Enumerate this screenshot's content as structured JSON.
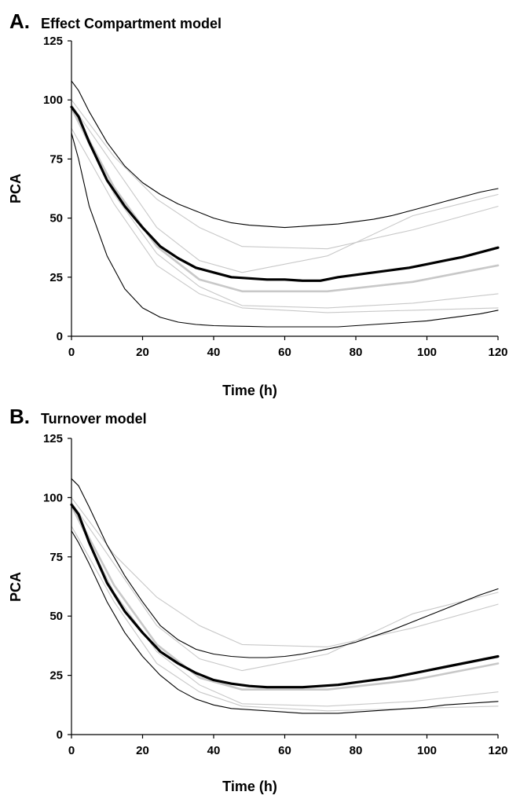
{
  "chart_data": [
    {
      "type": "line",
      "panel_letter": "A.",
      "title": "Effect Compartment model",
      "xlabel": "Time (h)",
      "ylabel": "PCA",
      "xlim": [
        0,
        120
      ],
      "ylim": [
        0,
        125
      ],
      "xticks": [
        "0",
        "20",
        "40",
        "60",
        "80",
        "100",
        "120"
      ],
      "yticks": [
        "0",
        "25",
        "50",
        "75",
        "100",
        "125"
      ],
      "grid": false,
      "legend": "none",
      "series": [
        {
          "style": "gray-thin",
          "x": [
            0,
            6,
            12,
            24,
            36,
            48,
            72,
            96,
            120
          ],
          "y": [
            100,
            88,
            76,
            58,
            46,
            38,
            37,
            45,
            55
          ]
        },
        {
          "style": "gray-thin",
          "x": [
            0,
            6,
            12,
            24,
            36,
            48,
            72,
            96,
            120
          ],
          "y": [
            98,
            85,
            72,
            46,
            32,
            27,
            34,
            51,
            60
          ]
        },
        {
          "style": "gray-thick",
          "x": [
            0,
            6,
            12,
            24,
            36,
            48,
            72,
            96,
            120
          ],
          "y": [
            97,
            80,
            63,
            38,
            24,
            19,
            19,
            23,
            30
          ]
        },
        {
          "style": "gray-thin",
          "x": [
            0,
            6,
            12,
            24,
            36,
            48,
            72,
            96,
            120
          ],
          "y": [
            96,
            78,
            60,
            35,
            21,
            13,
            12,
            14,
            18
          ]
        },
        {
          "style": "gray-thin",
          "x": [
            0,
            6,
            12,
            24,
            36,
            48,
            72,
            96,
            120
          ],
          "y": [
            88,
            72,
            56,
            30,
            18,
            12,
            10,
            11,
            12
          ]
        },
        {
          "style": "black-thin",
          "x": [
            0,
            2,
            5,
            10,
            15,
            20,
            25,
            30,
            35,
            40,
            45,
            50,
            55,
            60,
            65,
            70,
            75,
            80,
            85,
            90,
            95,
            100,
            105,
            110,
            115,
            120
          ],
          "y": [
            108,
            104,
            95,
            82,
            72,
            65,
            60,
            56,
            53,
            50,
            48,
            47,
            46.5,
            46,
            46.5,
            47,
            47.5,
            48.5,
            49.5,
            51,
            53,
            55,
            57,
            59,
            61,
            62.5
          ]
        },
        {
          "style": "black-thick",
          "x": [
            0,
            2,
            5,
            10,
            15,
            20,
            25,
            30,
            35,
            40,
            45,
            50,
            55,
            60,
            65,
            70,
            75,
            80,
            85,
            90,
            95,
            100,
            105,
            110,
            115,
            120
          ],
          "y": [
            97,
            93,
            82,
            66,
            55,
            46,
            38,
            33,
            29,
            27,
            25,
            24.5,
            24,
            24,
            23.5,
            23.5,
            25,
            26,
            27,
            28,
            29,
            30.5,
            32,
            33.5,
            35.5,
            37.5
          ]
        },
        {
          "style": "black-thin",
          "x": [
            0,
            2,
            5,
            10,
            15,
            20,
            25,
            30,
            35,
            40,
            45,
            50,
            55,
            60,
            65,
            70,
            75,
            80,
            85,
            90,
            95,
            100,
            105,
            110,
            115,
            120
          ],
          "y": [
            86,
            75,
            55,
            34,
            20,
            12,
            8,
            6,
            5,
            4.5,
            4.3,
            4.2,
            4,
            4,
            4,
            4,
            4,
            4.5,
            5,
            5.5,
            6,
            6.5,
            7.5,
            8.5,
            9.5,
            11
          ]
        }
      ]
    },
    {
      "type": "line",
      "panel_letter": "B.",
      "title": "Turnover model",
      "xlabel": "Time (h)",
      "ylabel": "PCA",
      "xlim": [
        0,
        120
      ],
      "ylim": [
        0,
        125
      ],
      "xticks": [
        "0",
        "20",
        "40",
        "60",
        "80",
        "100",
        "120"
      ],
      "yticks": [
        "0",
        "25",
        "50",
        "75",
        "100",
        "125"
      ],
      "grid": false,
      "legend": "none",
      "series": [
        {
          "style": "gray-thin",
          "x": [
            0,
            6,
            12,
            24,
            36,
            48,
            72,
            96,
            120
          ],
          "y": [
            100,
            88,
            76,
            58,
            46,
            38,
            37,
            45,
            55
          ]
        },
        {
          "style": "gray-thin",
          "x": [
            0,
            6,
            12,
            24,
            36,
            48,
            72,
            96,
            120
          ],
          "y": [
            98,
            85,
            72,
            46,
            32,
            27,
            34,
            51,
            60
          ]
        },
        {
          "style": "gray-thick",
          "x": [
            0,
            6,
            12,
            24,
            36,
            48,
            72,
            96,
            120
          ],
          "y": [
            97,
            80,
            63,
            38,
            24,
            19,
            19,
            23,
            30
          ]
        },
        {
          "style": "gray-thin",
          "x": [
            0,
            6,
            12,
            24,
            36,
            48,
            72,
            96,
            120
          ],
          "y": [
            96,
            78,
            60,
            35,
            21,
            13,
            12,
            14,
            18
          ]
        },
        {
          "style": "gray-thin",
          "x": [
            0,
            6,
            12,
            24,
            36,
            48,
            72,
            96,
            120
          ],
          "y": [
            88,
            72,
            56,
            30,
            18,
            12,
            10,
            11,
            12
          ]
        },
        {
          "style": "black-thin",
          "x": [
            0,
            2,
            5,
            10,
            15,
            20,
            25,
            30,
            35,
            40,
            45,
            50,
            55,
            60,
            65,
            70,
            75,
            80,
            85,
            90,
            95,
            100,
            105,
            110,
            115,
            120
          ],
          "y": [
            108,
            105,
            96,
            80,
            67,
            56,
            46,
            40,
            36,
            34,
            33,
            32.5,
            32.5,
            33,
            34,
            35.5,
            37,
            39,
            41.5,
            44,
            47,
            50,
            53,
            56,
            59,
            61.5
          ]
        },
        {
          "style": "black-thick",
          "x": [
            0,
            2,
            5,
            10,
            15,
            20,
            25,
            30,
            35,
            40,
            45,
            50,
            55,
            60,
            65,
            70,
            75,
            80,
            85,
            90,
            95,
            100,
            105,
            110,
            115,
            120
          ],
          "y": [
            97,
            93,
            81,
            64,
            52,
            43,
            35,
            30,
            26,
            23,
            21.5,
            20.5,
            20,
            20,
            20,
            20.5,
            21,
            22,
            23,
            24,
            25.5,
            27,
            28.5,
            30,
            31.5,
            33
          ]
        },
        {
          "style": "black-thin",
          "x": [
            0,
            2,
            5,
            10,
            15,
            20,
            25,
            30,
            35,
            40,
            45,
            50,
            55,
            60,
            65,
            70,
            75,
            80,
            85,
            90,
            95,
            100,
            105,
            110,
            115,
            120
          ],
          "y": [
            86,
            81,
            72,
            56,
            43,
            33,
            25,
            19,
            15,
            12.5,
            11,
            10.5,
            10,
            9.5,
            9,
            9,
            9,
            9.5,
            10,
            10.5,
            11,
            11.5,
            12.5,
            13,
            13.5,
            14
          ]
        }
      ]
    }
  ],
  "colors": {
    "black": "#000000",
    "gray": "#c8c8c8",
    "axis": "#000000",
    "background": "#ffffff"
  }
}
